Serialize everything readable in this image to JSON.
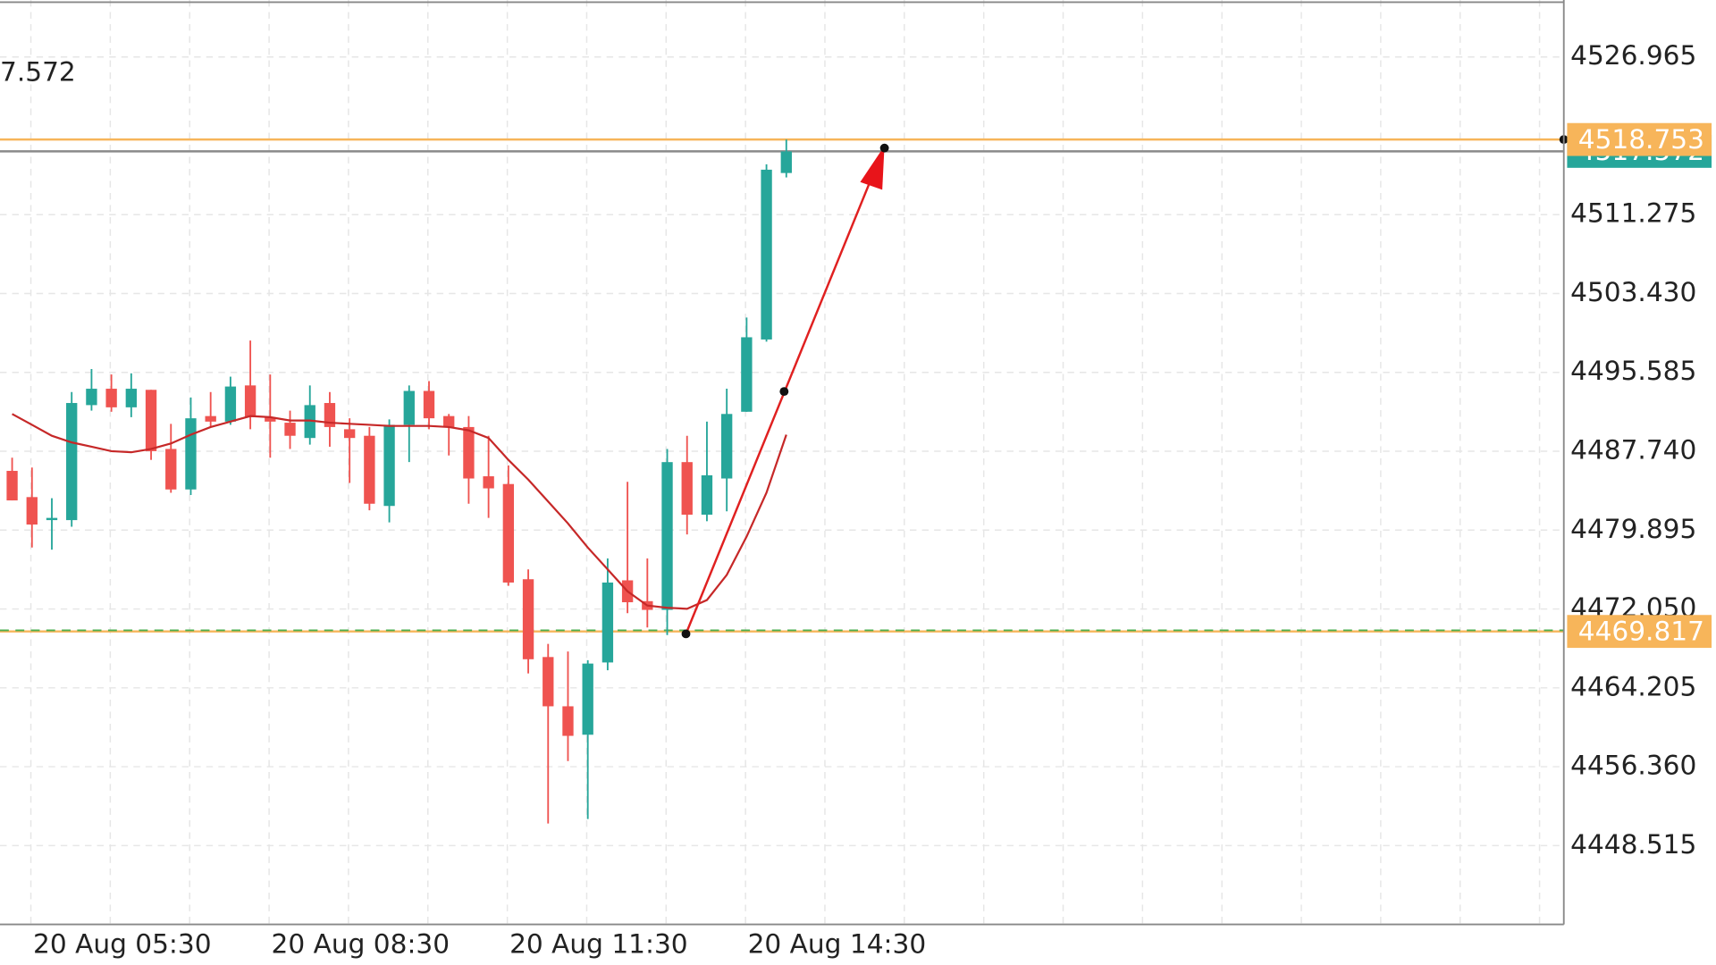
{
  "chart_data": {
    "type": "candlestick",
    "header_text": "7.572",
    "categories": [
      null,
      "20 Aug 05:30",
      null,
      null,
      null,
      null,
      null,
      null,
      null,
      null,
      null,
      null,
      null,
      "20 Aug 08:30",
      null,
      null,
      null,
      null,
      null,
      null,
      null,
      null,
      null,
      null,
      null,
      "20 Aug 11:30",
      null,
      null,
      null,
      null,
      null,
      null,
      null,
      null,
      null,
      null,
      null,
      "20 Aug 14:30",
      null,
      null
    ],
    "open": [
      4485.79,
      4483.18,
      4480.89,
      4480.89,
      4492.33,
      4493.96,
      4492.11,
      4493.85,
      4487.97,
      4483.94,
      4491.24,
      4490.69,
      4494.29,
      4491.13,
      4490.58,
      4489.06,
      4492.54,
      4489.93,
      4489.28,
      4482.3,
      4490.37,
      4493.74,
      4491.24,
      4490.15,
      4485.25,
      4484.48,
      4475.01,
      4467.27,
      4462.37,
      4459.54,
      4466.73,
      4474.9,
      4472.83,
      4471.96,
      4486.66,
      4481.43,
      4485.03,
      4491.67,
      4498.86,
      4515.42
    ],
    "high": [
      4487.1,
      4486.12,
      4483.07,
      4493.63,
      4495.92,
      4495.38,
      4495.49,
      4493.85,
      4490.47,
      4493.09,
      4493.63,
      4495.16,
      4498.75,
      4495.38,
      4491.78,
      4494.29,
      4493.63,
      4491.02,
      4490.15,
      4490.91,
      4494.29,
      4494.72,
      4491.45,
      4491.24,
      4489.28,
      4486.33,
      4475.99,
      4468.58,
      4467.82,
      4466.95,
      4477.08,
      4484.7,
      4477.08,
      4487.97,
      4489.28,
      4490.69,
      4493.96,
      4501.04,
      4516.29,
      4518.75
    ],
    "low": [
      4482.85,
      4478.16,
      4477.95,
      4480.23,
      4491.78,
      4491.67,
      4491.13,
      4486.88,
      4483.61,
      4483.39,
      4490.15,
      4490.37,
      4489.93,
      4487.1,
      4487.97,
      4488.4,
      4488.19,
      4484.59,
      4481.87,
      4480.67,
      4486.66,
      4489.93,
      4487.32,
      4482.52,
      4481.11,
      4474.35,
      4465.64,
      4450.71,
      4456.92,
      4451.15,
      4465.96,
      4471.63,
      4470.21,
      4469.45,
      4479.47,
      4480.78,
      4481.76,
      4491.67,
      4498.64,
      4514.98
    ],
    "close": [
      4482.85,
      4480.45,
      4481.11,
      4492.54,
      4493.96,
      4492.11,
      4493.96,
      4487.75,
      4483.94,
      4491.02,
      4490.69,
      4494.18,
      4491.13,
      4490.69,
      4489.28,
      4492.33,
      4490.15,
      4489.06,
      4482.52,
      4490.37,
      4493.74,
      4491.02,
      4490.15,
      4485.03,
      4484.05,
      4474.68,
      4467.05,
      4462.37,
      4459.43,
      4466.62,
      4474.68,
      4472.72,
      4471.96,
      4486.66,
      4481.43,
      4485.35,
      4491.45,
      4499.08,
      4515.75,
      4517.57
    ],
    "up_color": "#26a69a",
    "down_color": "#ef5350",
    "ma": {
      "color": "#c62828",
      "values": [
        4491.45,
        4490.37,
        4489.28,
        4488.62,
        4488.19,
        4487.75,
        4487.64,
        4487.97,
        4488.51,
        4489.39,
        4490.15,
        4490.69,
        4491.24,
        4491.13,
        4490.8,
        4490.8,
        4490.58,
        4490.47,
        4490.37,
        4490.26,
        4490.26,
        4490.26,
        4490.15,
        4489.82,
        4489.06,
        4486.88,
        4484.92,
        4482.74,
        4480.56,
        4478.16,
        4475.99,
        4473.81,
        4472.39,
        4472.17,
        4472.07,
        4472.94,
        4475.44,
        4479.25,
        4483.61,
        4489.39
      ]
    },
    "ylim": [
      4440.67,
      4532.63
    ],
    "yticks": [
      4526.965,
      4511.275,
      {
        "value": 4503.43,
        "label": "4503.430"
      },
      4495.585,
      {
        "value": 4487.74,
        "label": "4487.740"
      },
      4479.895,
      {
        "value": 4472.05,
        "label": "4472.050"
      },
      4464.205,
      {
        "value": 4456.36,
        "label": "4456.360"
      },
      4448.515
    ],
    "grid": true,
    "price_lines": [
      {
        "value": 4517.572,
        "color": "#26a69a",
        "line_color": "#8a8a8a"
      },
      {
        "value": 4518.753,
        "color": "#f7b55a",
        "line_color": "#f7b55a"
      },
      {
        "value": 4469.817,
        "color": "#f7b55a",
        "line_color": "#f7b55a"
      }
    ]
  }
}
